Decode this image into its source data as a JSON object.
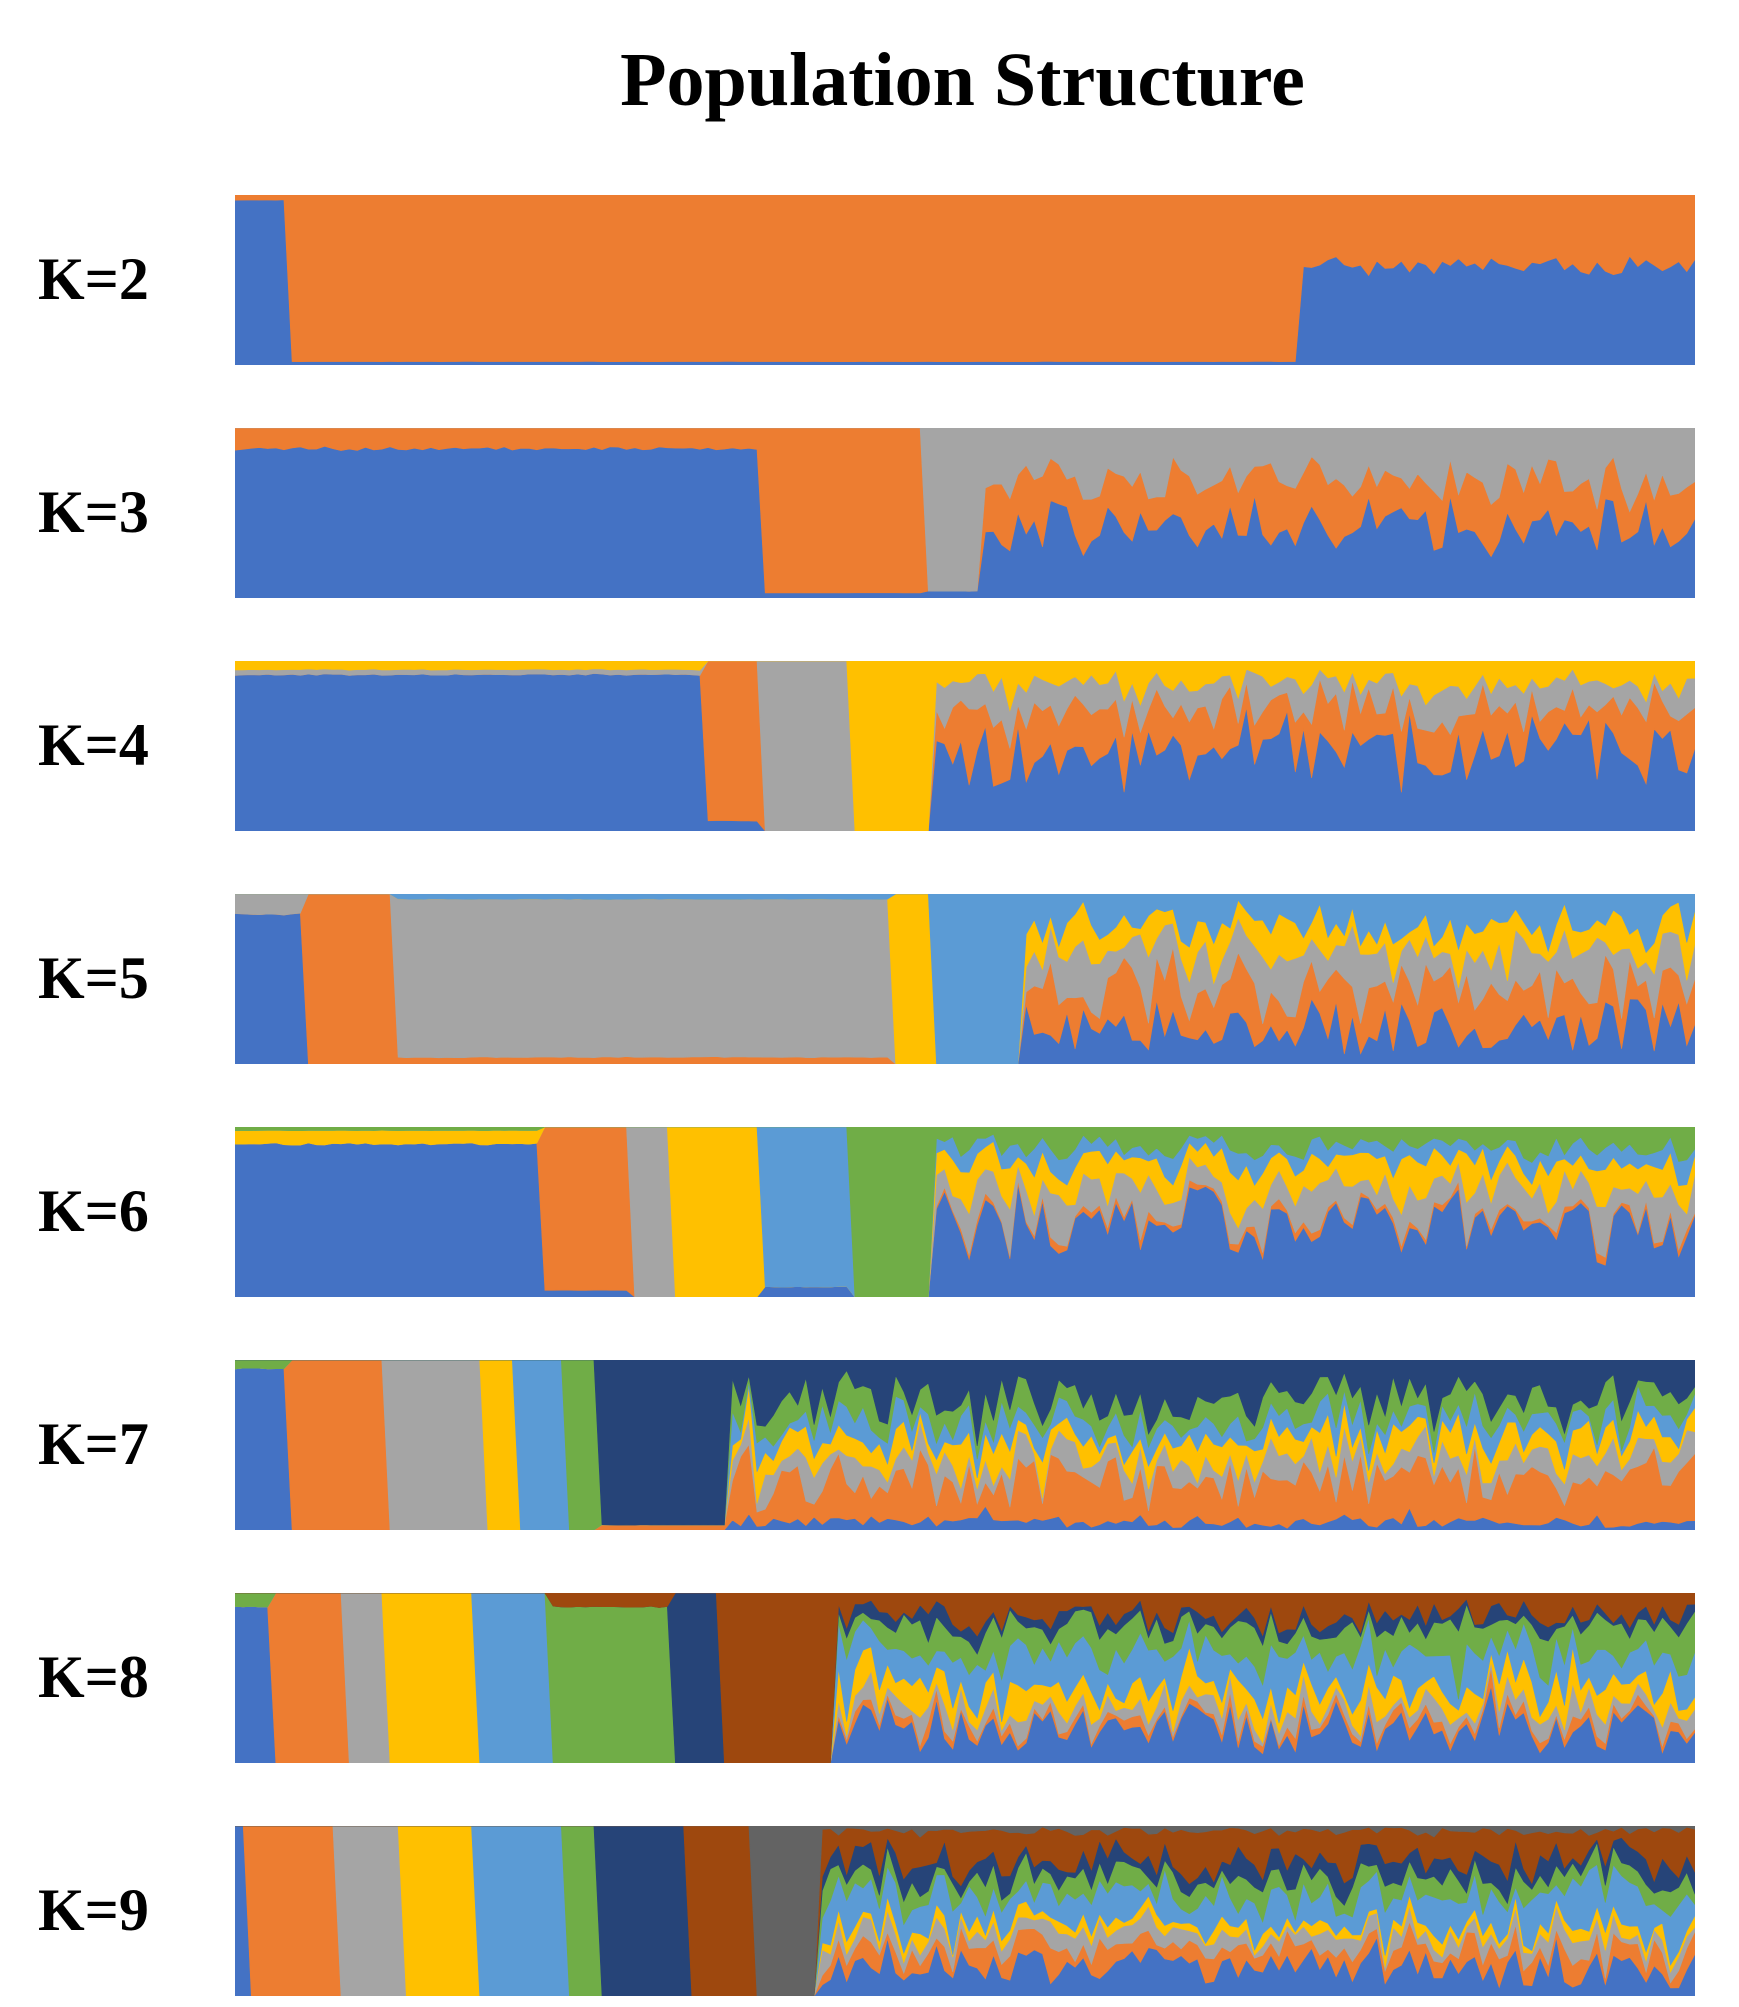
{
  "title": "Population Structure",
  "colors": {
    "blue": "#4472c4",
    "orange": "#ed7d31",
    "gray": "#a5a5a5",
    "yellow": "#ffc000",
    "lightblue": "#5b9bd5",
    "green": "#70ad47",
    "navy": "#264478",
    "brown": "#9e480e",
    "darkgray": "#636363"
  },
  "chart_data": {
    "type": "area",
    "xlabel": "",
    "ylabel": "",
    "ylim": [
      0,
      1
    ],
    "panels": [
      {
        "label": "K=2",
        "clusters": [
          "blue",
          "orange"
        ],
        "blocks": [
          {
            "share": 0.04,
            "props": [
              0.97,
              0.03
            ],
            "noise": 0.03
          },
          {
            "share": 0.69,
            "props": [
              0.02,
              0.98
            ],
            "noise": 0.02
          },
          {
            "share": 0.27,
            "props": [
              0.58,
              0.42
            ],
            "noise": 0.12
          }
        ]
      },
      {
        "label": "K=3",
        "clusters": [
          "blue",
          "orange",
          "gray"
        ],
        "blocks": [
          {
            "share": 0.36,
            "props": [
              0.88,
              0.12,
              0.0
            ],
            "noise": 0.06
          },
          {
            "share": 0.11,
            "props": [
              0.03,
              0.97,
              0.0
            ],
            "noise": 0.02
          },
          {
            "share": 0.04,
            "props": [
              0.04,
              0.0,
              0.96
            ],
            "noise": 0.02
          },
          {
            "share": 0.49,
            "props": [
              0.42,
              0.27,
              0.31
            ],
            "noise": 0.45
          }
        ]
      },
      {
        "label": "K=4",
        "clusters": [
          "blue",
          "orange",
          "gray",
          "yellow"
        ],
        "blocks": [
          {
            "share": 0.32,
            "props": [
              0.92,
              0.0,
              0.03,
              0.05
            ],
            "noise": 0.05
          },
          {
            "share": 0.04,
            "props": [
              0.06,
              0.94,
              0.0,
              0.0
            ],
            "noise": 0.02
          },
          {
            "share": 0.06,
            "props": [
              0.0,
              0.0,
              1.0,
              0.0
            ],
            "noise": 0.01
          },
          {
            "share": 0.06,
            "props": [
              0.0,
              0.0,
              0.0,
              1.0
            ],
            "noise": 0.01
          },
          {
            "share": 0.52,
            "props": [
              0.48,
              0.24,
              0.14,
              0.14
            ],
            "noise": 0.6
          }
        ]
      },
      {
        "label": "K=5",
        "clusters": [
          "blue",
          "orange",
          "gray",
          "yellow",
          "lightblue"
        ],
        "blocks": [
          {
            "share": 0.05,
            "props": [
              0.88,
              0.0,
              0.12,
              0.0,
              0.0
            ],
            "noise": 0.06
          },
          {
            "share": 0.06,
            "props": [
              0.0,
              1.0,
              0.0,
              0.0,
              0.0
            ],
            "noise": 0.01
          },
          {
            "share": 0.34,
            "props": [
              0.0,
              0.04,
              0.93,
              0.0,
              0.03
            ],
            "noise": 0.05
          },
          {
            "share": 0.03,
            "props": [
              0.0,
              0.0,
              0.0,
              1.0,
              0.0
            ],
            "noise": 0.01
          },
          {
            "share": 0.06,
            "props": [
              0.0,
              0.0,
              0.0,
              0.0,
              1.0
            ],
            "noise": 0.01
          },
          {
            "share": 0.46,
            "props": [
              0.22,
              0.24,
              0.22,
              0.14,
              0.18
            ],
            "noise": 0.7
          }
        ]
      },
      {
        "label": "K=6",
        "clusters": [
          "blue",
          "orange",
          "gray",
          "yellow",
          "lightblue",
          "green"
        ],
        "blocks": [
          {
            "share": 0.21,
            "props": [
              0.9,
              0.0,
              0.0,
              0.08,
              0.0,
              0.02
            ],
            "noise": 0.05
          },
          {
            "share": 0.06,
            "props": [
              0.04,
              0.96,
              0.0,
              0.0,
              0.0,
              0.0
            ],
            "noise": 0.02
          },
          {
            "share": 0.03,
            "props": [
              0.0,
              0.0,
              1.0,
              0.0,
              0.0,
              0.0
            ],
            "noise": 0.01
          },
          {
            "share": 0.06,
            "props": [
              0.0,
              0.0,
              0.0,
              1.0,
              0.0,
              0.0
            ],
            "noise": 0.01
          },
          {
            "share": 0.06,
            "props": [
              0.06,
              0.0,
              0.0,
              0.0,
              0.94,
              0.0
            ],
            "noise": 0.02
          },
          {
            "share": 0.06,
            "props": [
              0.0,
              0.0,
              0.0,
              0.0,
              0.0,
              1.0
            ],
            "noise": 0.01
          },
          {
            "share": 0.52,
            "props": [
              0.45,
              0.03,
              0.16,
              0.16,
              0.08,
              0.12
            ],
            "noise": 0.6
          }
        ]
      },
      {
        "label": "K=7",
        "clusters": [
          "blue",
          "orange",
          "gray",
          "yellow",
          "lightblue",
          "green",
          "navy"
        ],
        "blocks": [
          {
            "share": 0.04,
            "props": [
              0.95,
              0.0,
              0.0,
              0.0,
              0.0,
              0.05,
              0.0
            ],
            "noise": 0.03
          },
          {
            "share": 0.065,
            "props": [
              0.0,
              1.0,
              0.0,
              0.0,
              0.0,
              0.0,
              0.0
            ],
            "noise": 0.01
          },
          {
            "share": 0.065,
            "props": [
              0.0,
              0.0,
              1.0,
              0.0,
              0.0,
              0.0,
              0.0
            ],
            "noise": 0.01
          },
          {
            "share": 0.025,
            "props": [
              0.0,
              0.0,
              0.0,
              1.0,
              0.0,
              0.0,
              0.0
            ],
            "noise": 0.01
          },
          {
            "share": 0.035,
            "props": [
              0.0,
              0.0,
              0.0,
              0.0,
              1.0,
              0.0,
              0.0
            ],
            "noise": 0.01
          },
          {
            "share": 0.02,
            "props": [
              0.0,
              0.0,
              0.0,
              0.0,
              0.0,
              1.0,
              0.0
            ],
            "noise": 0.01
          },
          {
            "share": 0.09,
            "props": [
              0.0,
              0.03,
              0.0,
              0.0,
              0.0,
              0.0,
              0.97
            ],
            "noise": 0.02
          },
          {
            "share": 0.66,
            "props": [
              0.05,
              0.25,
              0.12,
              0.12,
              0.1,
              0.12,
              0.24
            ],
            "noise": 0.7
          }
        ]
      },
      {
        "label": "K=8",
        "clusters": [
          "blue",
          "orange",
          "gray",
          "yellow",
          "lightblue",
          "green",
          "navy",
          "brown"
        ],
        "blocks": [
          {
            "share": 0.03,
            "props": [
              0.92,
              0.0,
              0.0,
              0.0,
              0.0,
              0.08,
              0.0,
              0.0
            ],
            "noise": 0.03
          },
          {
            "share": 0.05,
            "props": [
              0.0,
              1.0,
              0.0,
              0.0,
              0.0,
              0.0,
              0.0,
              0.0
            ],
            "noise": 0.01
          },
          {
            "share": 0.025,
            "props": [
              0.0,
              0.0,
              1.0,
              0.0,
              0.0,
              0.0,
              0.0,
              0.0
            ],
            "noise": 0.01
          },
          {
            "share": 0.06,
            "props": [
              0.0,
              0.0,
              0.0,
              1.0,
              0.0,
              0.0,
              0.0,
              0.0
            ],
            "noise": 0.01
          },
          {
            "share": 0.05,
            "props": [
              0.0,
              0.0,
              0.0,
              0.0,
              1.0,
              0.0,
              0.0,
              0.0
            ],
            "noise": 0.01
          },
          {
            "share": 0.085,
            "props": [
              0.0,
              0.0,
              0.0,
              0.0,
              0.0,
              0.92,
              0.0,
              0.08
            ],
            "noise": 0.04
          },
          {
            "share": 0.035,
            "props": [
              0.0,
              0.0,
              0.0,
              0.0,
              0.0,
              0.0,
              1.0,
              0.0
            ],
            "noise": 0.01
          },
          {
            "share": 0.075,
            "props": [
              0.0,
              0.0,
              0.0,
              0.0,
              0.0,
              0.0,
              0.0,
              1.0
            ],
            "noise": 0.01
          },
          {
            "share": 0.59,
            "props": [
              0.22,
              0.04,
              0.08,
              0.12,
              0.18,
              0.16,
              0.06,
              0.14
            ],
            "noise": 0.7
          }
        ]
      },
      {
        "label": "K=9",
        "clusters": [
          "blue",
          "orange",
          "gray",
          "yellow",
          "lightblue",
          "green",
          "navy",
          "brown",
          "darkgray"
        ],
        "blocks": [
          {
            "share": 0.01,
            "props": [
              1.0,
              0.0,
              0.0,
              0.0,
              0.0,
              0.0,
              0.0,
              0.0,
              0.0
            ],
            "noise": 0.01
          },
          {
            "share": 0.06,
            "props": [
              0.0,
              1.0,
              0.0,
              0.0,
              0.0,
              0.0,
              0.0,
              0.0,
              0.0
            ],
            "noise": 0.01
          },
          {
            "share": 0.045,
            "props": [
              0.0,
              0.0,
              1.0,
              0.0,
              0.0,
              0.0,
              0.0,
              0.0,
              0.0
            ],
            "noise": 0.01
          },
          {
            "share": 0.05,
            "props": [
              0.0,
              0.0,
              0.0,
              1.0,
              0.0,
              0.0,
              0.0,
              0.0,
              0.0
            ],
            "noise": 0.01
          },
          {
            "share": 0.06,
            "props": [
              0.0,
              0.0,
              0.0,
              0.0,
              1.0,
              0.0,
              0.0,
              0.0,
              0.0
            ],
            "noise": 0.01
          },
          {
            "share": 0.025,
            "props": [
              0.0,
              0.0,
              0.0,
              0.0,
              0.0,
              1.0,
              0.0,
              0.0,
              0.0
            ],
            "noise": 0.01
          },
          {
            "share": 0.06,
            "props": [
              0.0,
              0.0,
              0.0,
              0.0,
              0.0,
              0.0,
              1.0,
              0.0,
              0.0
            ],
            "noise": 0.01
          },
          {
            "share": 0.045,
            "props": [
              0.0,
              0.0,
              0.0,
              0.0,
              0.0,
              0.0,
              0.0,
              1.0,
              0.0
            ],
            "noise": 0.01
          },
          {
            "share": 0.045,
            "props": [
              0.0,
              0.0,
              0.0,
              0.0,
              0.0,
              0.0,
              0.0,
              0.0,
              1.0
            ],
            "noise": 0.01
          },
          {
            "share": 0.6,
            "props": [
              0.18,
              0.1,
              0.08,
              0.05,
              0.18,
              0.1,
              0.1,
              0.18,
              0.03
            ],
            "noise": 0.7
          }
        ]
      }
    ]
  }
}
